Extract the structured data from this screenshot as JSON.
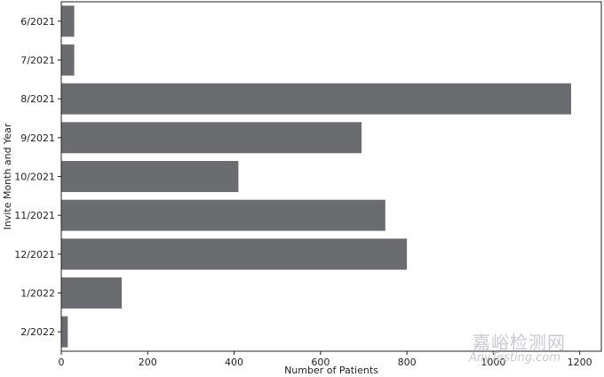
{
  "chart_data": {
    "type": "bar",
    "orientation": "horizontal",
    "categories": [
      "6/2021",
      "7/2021",
      "8/2021",
      "9/2021",
      "10/2021",
      "11/2021",
      "12/2021",
      "1/2022",
      "2/2022"
    ],
    "values": [
      30,
      30,
      1180,
      695,
      410,
      750,
      800,
      140,
      15
    ],
    "xlabel": "Number of Patients",
    "ylabel": "Invite Month and Year",
    "xlim": [
      0,
      1250
    ],
    "xticks": [
      0,
      200,
      400,
      600,
      800,
      1000,
      1200
    ],
    "bar_color": "#6b6c6f",
    "grid": false,
    "legend": "none"
  },
  "watermark": {
    "line1": "嘉峪检测网",
    "line2": "AnyTesting.com"
  }
}
